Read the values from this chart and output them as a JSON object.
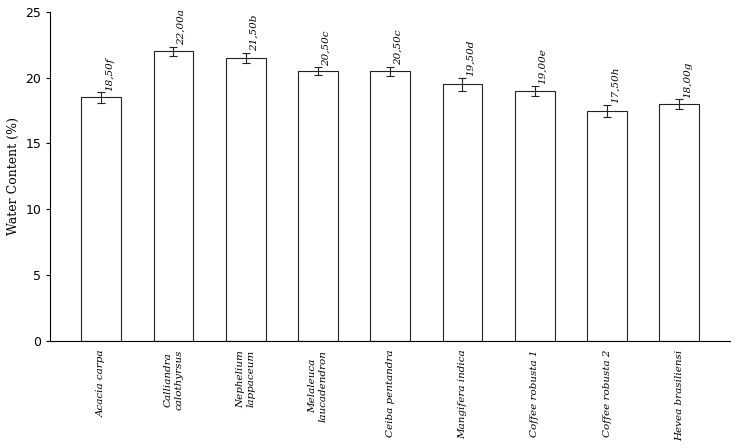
{
  "categories": [
    "Acacia carpa",
    "Calliandra\ncalothyrsus",
    "Nephelium\nlappaceum",
    "Melaleuca\nlaucadendron",
    "Ceiba pentandra",
    "Mangifera indica",
    "Coffee robusta 1",
    "Coffee robusta 2",
    "Hevea brasiliensi"
  ],
  "values": [
    18.5,
    22.0,
    21.5,
    20.5,
    20.5,
    19.5,
    19.0,
    17.5,
    18.0
  ],
  "errors": [
    0.4,
    0.35,
    0.4,
    0.3,
    0.35,
    0.5,
    0.4,
    0.45,
    0.35
  ],
  "labels": [
    "18,50f",
    "22,00a",
    "21,50b",
    "20,50c",
    "20,50c",
    "19,50d",
    "19,00e",
    "17,50h",
    "18,00g"
  ],
  "bar_color": "#ffffff",
  "bar_edgecolor": "#222222",
  "ylabel": "Water Content (%)",
  "ylim": [
    0,
    25
  ],
  "yticks": [
    0,
    5,
    10,
    15,
    20,
    25
  ],
  "bar_width": 0.55,
  "error_capsize": 3,
  "label_fontsize": 7.5,
  "tick_fontsize": 9,
  "ylabel_fontsize": 9,
  "xtick_fontsize": 7.5
}
